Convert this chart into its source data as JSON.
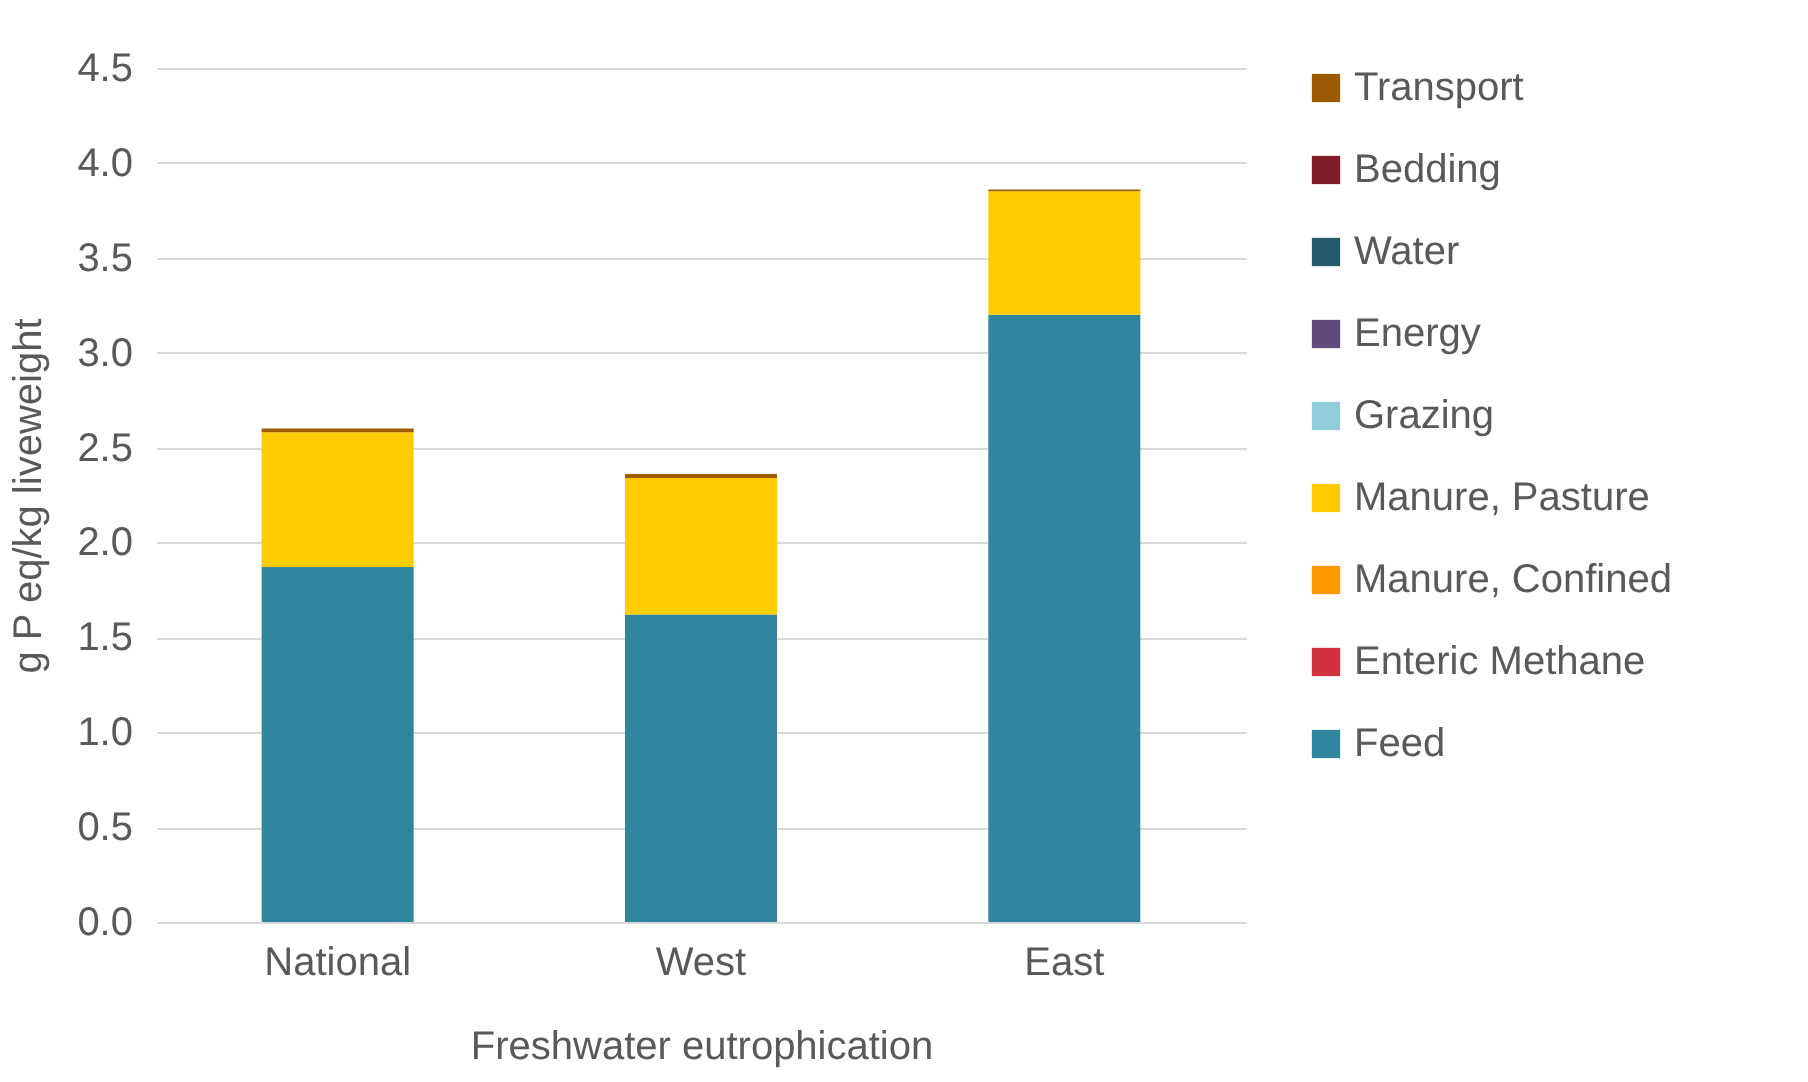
{
  "chart_data": {
    "type": "bar",
    "stacked": true,
    "ylabel": "g P eq/kg liveweight",
    "xlabel": "Freshwater eutrophication",
    "categories": [
      "National",
      "West",
      "East"
    ],
    "ylim": [
      0,
      4.5
    ],
    "yticks": [
      {
        "value": 0,
        "label": "0.0"
      },
      0.5,
      {
        "value": 1,
        "label": "1.0"
      },
      1.5,
      {
        "value": 2,
        "label": "2.0"
      },
      2.5,
      {
        "value": 3,
        "label": "3.0"
      },
      3.5,
      {
        "value": 4,
        "label": "4.0"
      },
      4.5
    ],
    "grid": "y",
    "legend": "right",
    "series": [
      {
        "name": "Feed",
        "color": "#31859c",
        "values": [
          1.87,
          1.62,
          3.2
        ]
      },
      {
        "name": "Enteric Methane",
        "color": "#d13240",
        "values": [
          0,
          0,
          0
        ]
      },
      {
        "name": "Manure, Confined",
        "color": "#ff9900",
        "values": [
          0,
          0,
          0
        ]
      },
      {
        "name": "Manure, Pasture",
        "color": "#ffcc00",
        "values": [
          0.71,
          0.72,
          0.65
        ]
      },
      {
        "name": "Grazing",
        "color": "#92cddc",
        "values": [
          0,
          0,
          0
        ]
      },
      {
        "name": "Energy",
        "color": "#604a7b",
        "values": [
          0,
          0,
          0
        ]
      },
      {
        "name": "Water",
        "color": "#215968",
        "values": [
          0,
          0,
          0
        ]
      },
      {
        "name": "Bedding",
        "color": "#7f1f2a",
        "values": [
          0,
          0,
          0
        ]
      },
      {
        "name": "Transport",
        "color": "#9c5b03",
        "values": [
          0.02,
          0.02,
          0.01
        ]
      }
    ]
  }
}
